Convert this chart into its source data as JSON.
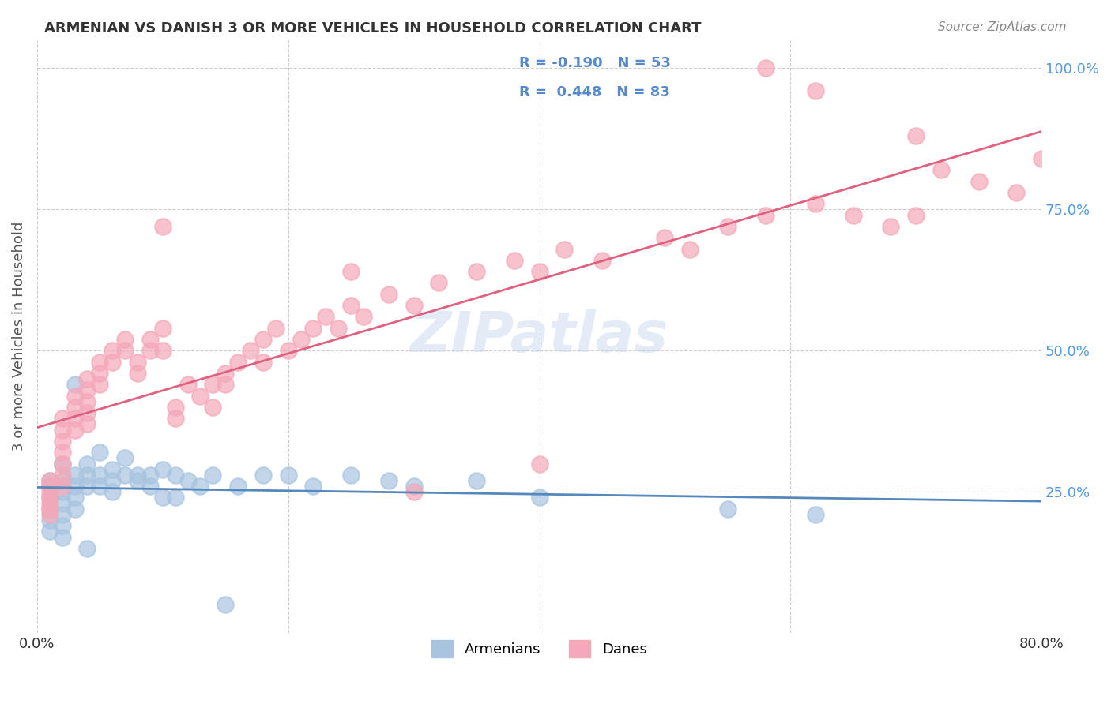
{
  "title": "ARMENIAN VS DANISH 3 OR MORE VEHICLES IN HOUSEHOLD CORRELATION CHART",
  "source": "Source: ZipAtlas.com",
  "xlabel_bottom": "",
  "ylabel": "3 or more Vehicles in Household",
  "x_min": 0.0,
  "x_max": 0.8,
  "y_min": 0.0,
  "y_max": 1.05,
  "x_ticks": [
    0.0,
    0.2,
    0.4,
    0.6,
    0.8
  ],
  "x_tick_labels": [
    "0.0%",
    "",
    "",
    "",
    "80.0%"
  ],
  "y_ticks": [
    0.25,
    0.5,
    0.75,
    1.0
  ],
  "y_tick_labels": [
    "25.0%",
    "50.0%",
    "75.0%",
    "100.0%"
  ],
  "armenian_R": -0.19,
  "armenian_N": 53,
  "danish_R": 0.448,
  "danish_N": 83,
  "armenian_color": "#a8c4e0",
  "danish_color": "#f4a8b8",
  "armenian_line_color": "#5588bb",
  "danish_line_color": "#e06080",
  "background_color": "#ffffff",
  "grid_color": "#cccccc",
  "watermark_text": "ZIPatlas",
  "armenian_x": [
    0.01,
    0.01,
    0.01,
    0.01,
    0.01,
    0.01,
    0.02,
    0.02,
    0.02,
    0.02,
    0.02,
    0.02,
    0.02,
    0.03,
    0.03,
    0.03,
    0.03,
    0.03,
    0.04,
    0.04,
    0.04,
    0.04,
    0.05,
    0.05,
    0.05,
    0.06,
    0.06,
    0.06,
    0.07,
    0.07,
    0.08,
    0.08,
    0.09,
    0.09,
    0.1,
    0.1,
    0.11,
    0.11,
    0.12,
    0.13,
    0.14,
    0.15,
    0.16,
    0.18,
    0.2,
    0.22,
    0.25,
    0.28,
    0.3,
    0.35,
    0.4,
    0.55,
    0.62
  ],
  "armenian_y": [
    0.27,
    0.26,
    0.24,
    0.22,
    0.2,
    0.18,
    0.3,
    0.27,
    0.25,
    0.23,
    0.21,
    0.19,
    0.17,
    0.44,
    0.28,
    0.26,
    0.24,
    0.22,
    0.3,
    0.28,
    0.26,
    0.15,
    0.32,
    0.28,
    0.26,
    0.29,
    0.27,
    0.25,
    0.31,
    0.28,
    0.28,
    0.27,
    0.28,
    0.26,
    0.29,
    0.24,
    0.28,
    0.24,
    0.27,
    0.26,
    0.28,
    0.05,
    0.26,
    0.28,
    0.28,
    0.26,
    0.28,
    0.27,
    0.26,
    0.27,
    0.24,
    0.22,
    0.21
  ],
  "danish_x": [
    0.01,
    0.01,
    0.01,
    0.01,
    0.01,
    0.01,
    0.01,
    0.02,
    0.02,
    0.02,
    0.02,
    0.02,
    0.02,
    0.02,
    0.03,
    0.03,
    0.03,
    0.03,
    0.04,
    0.04,
    0.04,
    0.04,
    0.04,
    0.05,
    0.05,
    0.05,
    0.06,
    0.06,
    0.07,
    0.07,
    0.08,
    0.08,
    0.09,
    0.09,
    0.1,
    0.1,
    0.11,
    0.11,
    0.12,
    0.13,
    0.14,
    0.14,
    0.15,
    0.15,
    0.16,
    0.17,
    0.18,
    0.18,
    0.19,
    0.2,
    0.21,
    0.22,
    0.23,
    0.24,
    0.25,
    0.26,
    0.28,
    0.3,
    0.32,
    0.35,
    0.38,
    0.4,
    0.42,
    0.45,
    0.5,
    0.52,
    0.55,
    0.58,
    0.62,
    0.65,
    0.68,
    0.7,
    0.72,
    0.75,
    0.78,
    0.8,
    0.58,
    0.62,
    0.7,
    0.25,
    0.3,
    0.4,
    0.1
  ],
  "danish_y": [
    0.27,
    0.26,
    0.25,
    0.24,
    0.23,
    0.22,
    0.21,
    0.38,
    0.36,
    0.34,
    0.32,
    0.3,
    0.28,
    0.26,
    0.42,
    0.4,
    0.38,
    0.36,
    0.45,
    0.43,
    0.41,
    0.39,
    0.37,
    0.48,
    0.46,
    0.44,
    0.5,
    0.48,
    0.52,
    0.5,
    0.48,
    0.46,
    0.52,
    0.5,
    0.54,
    0.5,
    0.4,
    0.38,
    0.44,
    0.42,
    0.44,
    0.4,
    0.46,
    0.44,
    0.48,
    0.5,
    0.52,
    0.48,
    0.54,
    0.5,
    0.52,
    0.54,
    0.56,
    0.54,
    0.58,
    0.56,
    0.6,
    0.58,
    0.62,
    0.64,
    0.66,
    0.64,
    0.68,
    0.66,
    0.7,
    0.68,
    0.72,
    0.74,
    0.76,
    0.74,
    0.72,
    0.74,
    0.82,
    0.8,
    0.78,
    0.84,
    1.0,
    0.96,
    0.88,
    0.64,
    0.25,
    0.3,
    0.72
  ]
}
